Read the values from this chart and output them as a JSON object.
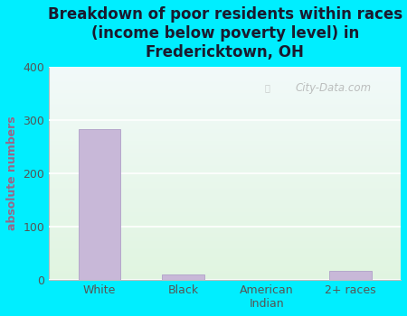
{
  "categories": [
    "White",
    "Black",
    "American\nIndian",
    "2+ races"
  ],
  "values": [
    283,
    10,
    0,
    18
  ],
  "bar_color": "#c8b8d8",
  "bar_edge_color": "#b0a0c8",
  "title": "Breakdown of poor residents within races\n(income below poverty level) in\nFredericktown, OH",
  "ylabel": "absolute numbers",
  "ylim": [
    0,
    400
  ],
  "yticks": [
    0,
    100,
    200,
    300,
    400
  ],
  "background_color": "#00eeff",
  "title_color": "#1a1a2e",
  "watermark": "City-Data.com",
  "title_fontsize": 12,
  "label_fontsize": 9,
  "ylabel_fontsize": 9,
  "ylabel_color": "#996688",
  "tick_color": "#555555"
}
